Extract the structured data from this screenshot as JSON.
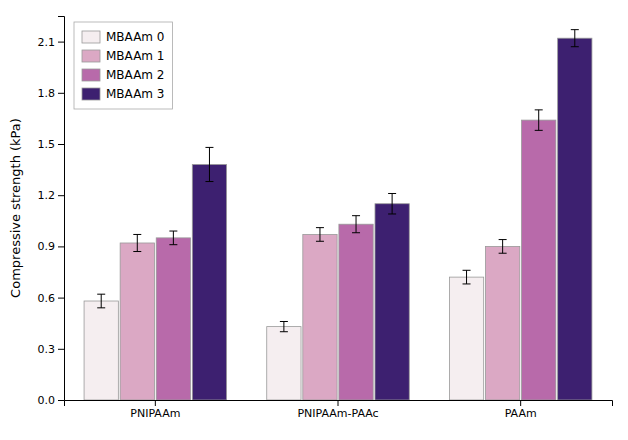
{
  "chart_data": {
    "type": "bar",
    "y_label": "Compressive strength (kPa)",
    "categories": [
      "PNIPAAm",
      "PNIPAAm-PAAc",
      "PAAm"
    ],
    "series": [
      {
        "name": "MBAAm 0",
        "color": "#f5eef0",
        "values": [
          0.58,
          0.43,
          0.72
        ],
        "errors": [
          0.04,
          0.03,
          0.04
        ]
      },
      {
        "name": "MBAAm 1",
        "color": "#dba8c4",
        "values": [
          0.92,
          0.97,
          0.9
        ],
        "errors": [
          0.05,
          0.04,
          0.04
        ]
      },
      {
        "name": "MBAAm 2",
        "color": "#b86aaa",
        "values": [
          0.95,
          1.03,
          1.64
        ],
        "errors": [
          0.04,
          0.05,
          0.06
        ]
      },
      {
        "name": "MBAAm 3",
        "color": "#3d2070",
        "values": [
          1.38,
          1.15,
          2.12
        ],
        "errors": [
          0.1,
          0.06,
          0.05
        ]
      }
    ],
    "ylim": [
      0.0,
      2.25
    ],
    "yticks": [
      {
        "value": 0.0,
        "label": "0.0"
      },
      0.3,
      0.6,
      0.9,
      1.2,
      1.5,
      1.8,
      2.1
    ],
    "grid": false,
    "legend": "upper left"
  }
}
